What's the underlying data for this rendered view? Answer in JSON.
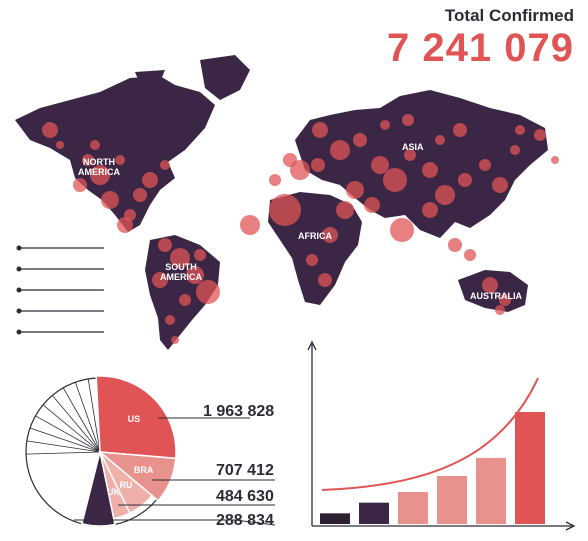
{
  "header": {
    "title": "Total Confirmed",
    "total": "7 241 079"
  },
  "map": {
    "regions": [
      "NORTH\nAMERICA",
      "SOUTH\nAMERICA",
      "AFRICA",
      "ASIA",
      "AUSTRALIA"
    ],
    "land_color": "#3b2645",
    "dot_color": "#e05456"
  },
  "colors": {
    "dark": "#2f1f33",
    "purple": "#3b2645",
    "pink": "#e8928d",
    "red": "#e05456",
    "light": "#f0b0aa"
  },
  "chart_data": [
    {
      "type": "pie",
      "title": "",
      "slices": [
        {
          "label": "US",
          "value": 1963828
        },
        {
          "label": "BRA",
          "value": 707412
        },
        {
          "label": "RU",
          "value": 484630
        },
        {
          "label": "UK",
          "value": 288834
        }
      ],
      "value_labels": [
        "1 963 828",
        "707 412",
        "484 630",
        "288 834"
      ]
    },
    {
      "type": "bar",
      "title": "",
      "categories": [
        "",
        "",
        "",
        "",
        "",
        ""
      ],
      "values": [
        1,
        2,
        3,
        4.5,
        6.2,
        10.5
      ],
      "trend_line": true
    }
  ]
}
